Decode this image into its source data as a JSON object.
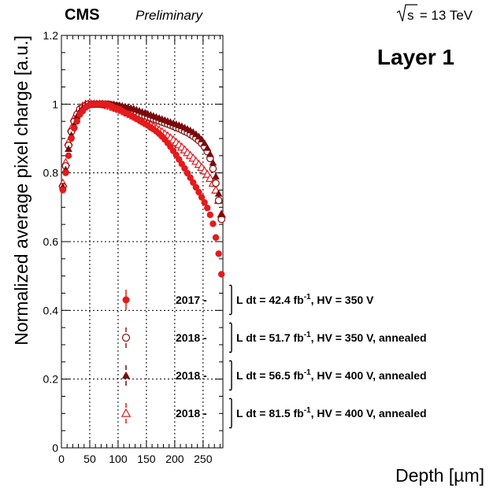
{
  "header": {
    "experiment": "CMS",
    "status": "Preliminary",
    "energy_prefix": "s",
    "energy_suffix": " = 13 TeV"
  },
  "chart_data": {
    "type": "scatter",
    "title": "Layer 1",
    "xlabel": "Depth [µm]",
    "ylabel": "Normalized average pixel charge [a.u.]",
    "xlim": [
      0,
      285
    ],
    "ylim": [
      0,
      1.2
    ],
    "xticks": [
      0,
      50,
      100,
      150,
      200,
      250
    ],
    "yticks": [
      0,
      0.2,
      0.4,
      0.6,
      0.8,
      1,
      1.2
    ],
    "grid": true,
    "x": [
      2.5,
      7.5,
      12.5,
      17.5,
      22.5,
      27.5,
      32.5,
      37.5,
      42.5,
      47.5,
      52.5,
      57.5,
      62.5,
      67.5,
      72.5,
      77.5,
      82.5,
      87.5,
      92.5,
      97.5,
      102.5,
      107.5,
      112.5,
      117.5,
      122.5,
      127.5,
      132.5,
      137.5,
      142.5,
      147.5,
      152.5,
      157.5,
      162.5,
      167.5,
      172.5,
      177.5,
      182.5,
      187.5,
      192.5,
      197.5,
      202.5,
      207.5,
      212.5,
      217.5,
      222.5,
      227.5,
      232.5,
      237.5,
      242.5,
      247.5,
      252.5,
      257.5,
      262.5,
      267.5,
      272.5,
      277.5,
      282.5
    ],
    "series": [
      {
        "name_parts": [
          "2017 - ",
          " L dt = 42.4 fb",
          "-1",
          ", HV = 350 V"
        ],
        "marker": "filled-circle",
        "color": "#e41a1c",
        "values": [
          0.75,
          0.8,
          0.85,
          0.9,
          0.93,
          0.95,
          0.97,
          0.98,
          0.99,
          0.995,
          1.0,
          1.0,
          1.0,
          1.0,
          1.0,
          1.0,
          0.998,
          0.995,
          0.99,
          0.988,
          0.985,
          0.98,
          0.975,
          0.972,
          0.968,
          0.963,
          0.958,
          0.953,
          0.948,
          0.943,
          0.938,
          0.932,
          0.927,
          0.921,
          0.914,
          0.906,
          0.897,
          0.887,
          0.876,
          0.864,
          0.852,
          0.839,
          0.826,
          0.813,
          0.799,
          0.786,
          0.772,
          0.758,
          0.744,
          0.729,
          0.714,
          0.698,
          0.678,
          0.652,
          0.612,
          0.565,
          0.505
        ]
      },
      {
        "name_parts": [
          "2018 - ",
          " L dt = 51.7 fb",
          "-1",
          ", HV = 350 V, annealed"
        ],
        "marker": "open-circle",
        "color": "#8b1a1a",
        "values": [
          0.76,
          0.82,
          0.88,
          0.92,
          0.95,
          0.97,
          0.985,
          0.99,
          0.995,
          1.0,
          1.0,
          1.0,
          1.0,
          1.0,
          1.0,
          1.0,
          1.0,
          0.998,
          0.996,
          0.994,
          0.992,
          0.99,
          0.988,
          0.985,
          0.982,
          0.979,
          0.976,
          0.972,
          0.969,
          0.966,
          0.963,
          0.96,
          0.957,
          0.954,
          0.951,
          0.948,
          0.945,
          0.942,
          0.939,
          0.936,
          0.932,
          0.929,
          0.925,
          0.921,
          0.917,
          0.912,
          0.907,
          0.901,
          0.894,
          0.886,
          0.876,
          0.862,
          0.842,
          0.812,
          0.77,
          0.72,
          0.665
        ]
      },
      {
        "name_parts": [
          "2018 - ",
          " L dt = 56.5 fb",
          "-1",
          ", HV = 400 V, annealed"
        ],
        "marker": "filled-triangle",
        "color": "#7a0a0a",
        "values": [
          0.76,
          0.81,
          0.87,
          0.91,
          0.94,
          0.965,
          0.98,
          0.99,
          0.995,
          0.998,
          1.0,
          1.0,
          1.0,
          1.0,
          1.0,
          1.0,
          1.0,
          1.0,
          1.0,
          0.998,
          0.997,
          0.995,
          0.993,
          0.991,
          0.989,
          0.987,
          0.984,
          0.981,
          0.978,
          0.975,
          0.972,
          0.969,
          0.966,
          0.963,
          0.96,
          0.957,
          0.954,
          0.951,
          0.948,
          0.945,
          0.942,
          0.939,
          0.936,
          0.932,
          0.928,
          0.924,
          0.919,
          0.913,
          0.906,
          0.898,
          0.887,
          0.873,
          0.855,
          0.83,
          0.79,
          0.74,
          0.68
        ]
      },
      {
        "name_parts": [
          "2018 - ",
          " L dt = 81.5 fb",
          "-1",
          ", HV = 400 V, annealed"
        ],
        "marker": "open-triangle",
        "color": "#e41a1c",
        "values": [
          0.77,
          0.83,
          0.89,
          0.93,
          0.96,
          0.975,
          0.99,
          0.995,
          1.0,
          1.0,
          1.0,
          1.0,
          1.0,
          1.0,
          1.0,
          0.998,
          0.996,
          0.994,
          0.991,
          0.988,
          0.985,
          0.982,
          0.978,
          0.974,
          0.97,
          0.966,
          0.962,
          0.958,
          0.953,
          0.949,
          0.944,
          0.94,
          0.935,
          0.93,
          0.925,
          0.92,
          0.914,
          0.908,
          0.902,
          0.896,
          0.889,
          0.882,
          0.875,
          0.867,
          0.859,
          0.851,
          0.843,
          0.834,
          0.825,
          0.816,
          0.806,
          0.796,
          0.784,
          0.77,
          0.75,
          0.72,
          0.68
        ]
      }
    ],
    "legend_position": "lower-left"
  }
}
